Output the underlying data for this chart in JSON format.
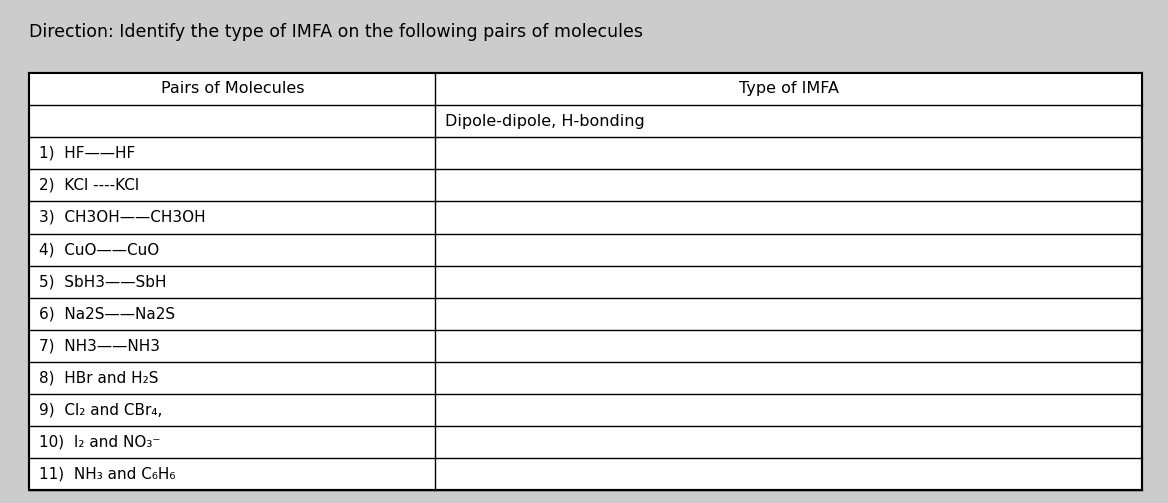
{
  "title": "Direction: Identify the type of IMFA on the following pairs of molecules",
  "col1_header": "Pairs of Molecules",
  "col2_header": "Type of IMFA",
  "col2_subheader": "Dipole-dipole, H-bonding",
  "rows": [
    [
      "1)  HF——HF",
      ""
    ],
    [
      "2)  KCl ----KCl",
      ""
    ],
    [
      "3)  CH3OH——CH3OH",
      ""
    ],
    [
      "4)  CuO——CuO",
      ""
    ],
    [
      "5)  SbH3——SbH",
      ""
    ],
    [
      "6)  Na2S——Na2S",
      ""
    ],
    [
      "7)  NH3——NH3",
      ""
    ],
    [
      "8)  HBr and H₂S",
      ""
    ],
    [
      "9)  Cl₂ and CBr₄,",
      ""
    ],
    [
      "10)  I₂ and NO₃⁻",
      ""
    ],
    [
      "11)  NH₃ and C₆H₆",
      ""
    ]
  ],
  "bg_color": "#cccccc",
  "title_fontsize": 12.5,
  "header_fontsize": 11.5,
  "row_fontsize": 11,
  "fig_width": 11.68,
  "fig_height": 5.03
}
